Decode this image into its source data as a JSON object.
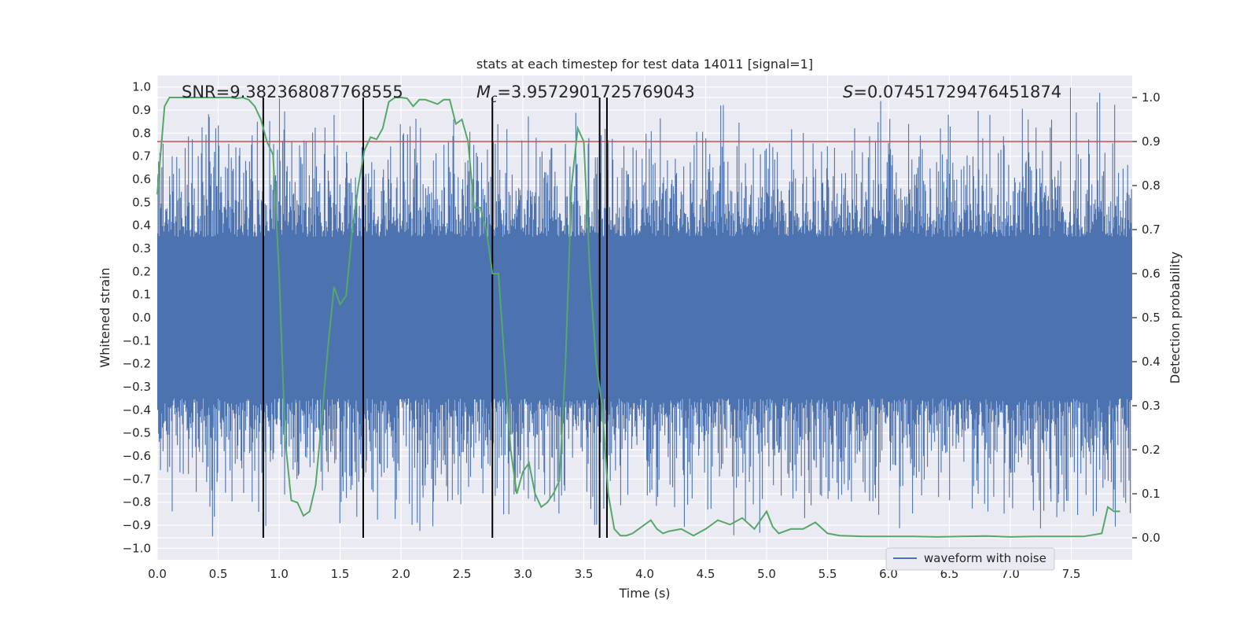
{
  "chart_data": {
    "type": "line",
    "title": "stats at each timestep for test data 14011 [signal=1]",
    "xlabel": "Time (s)",
    "ylabel_left": "Whitened strain",
    "ylabel_right": "Detection probability",
    "xlim": [
      0.0,
      8.0
    ],
    "ylim_left": [
      -1.05,
      1.05
    ],
    "ylim_right": [
      -0.05,
      1.05
    ],
    "xticks": [
      "0.0",
      "0.5",
      "1.0",
      "1.5",
      "2.0",
      "2.5",
      "3.0",
      "3.5",
      "4.0",
      "4.5",
      "5.0",
      "5.5",
      "6.0",
      "6.5",
      "7.0",
      "7.5"
    ],
    "yticks_left": [
      "-1.0",
      "-0.9",
      "-0.8",
      "-0.7",
      "-0.6",
      "-0.5",
      "-0.4",
      "-0.3",
      "-0.2",
      "-0.1",
      "0.0",
      "0.1",
      "0.2",
      "0.3",
      "0.4",
      "0.5",
      "0.6",
      "0.7",
      "0.8",
      "0.9",
      "1.0"
    ],
    "yticks_right": [
      "0.0",
      "0.1",
      "0.2",
      "0.3",
      "0.4",
      "0.5",
      "0.6",
      "0.7",
      "0.8",
      "0.9",
      "1.0"
    ],
    "annotations": {
      "snr": "SNR=9.382368087768555",
      "mc_symbol": "M",
      "mc_sub": "c",
      "mc_value": "=3.9572901725769043",
      "s_symbol": "S",
      "s_value": "=0.07451729476451874"
    },
    "legend": {
      "label": "waveform with noise",
      "position": "bottom-right"
    },
    "threshold_right": 0.9,
    "vertical_lines_x": [
      0.87,
      1.69,
      2.75,
      3.63,
      3.69
    ],
    "vertical_lines_right_range": [
      0.0,
      1.0
    ],
    "waveform": {
      "name": "waveform with noise",
      "duration": 8.0,
      "core_amplitude": 0.35,
      "peak_mean": 0.5
    },
    "detection_probability": {
      "x": [
        0.0,
        0.06,
        0.1,
        0.2,
        0.3,
        0.4,
        0.5,
        0.6,
        0.65,
        0.7,
        0.75,
        0.8,
        0.85,
        0.9,
        0.95,
        1.0,
        1.05,
        1.1,
        1.15,
        1.2,
        1.25,
        1.3,
        1.35,
        1.4,
        1.45,
        1.5,
        1.55,
        1.6,
        1.65,
        1.7,
        1.75,
        1.8,
        1.85,
        1.9,
        1.95,
        2.0,
        2.05,
        2.1,
        2.15,
        2.2,
        2.25,
        2.3,
        2.35,
        2.4,
        2.45,
        2.5,
        2.55,
        2.6,
        2.65,
        2.7,
        2.75,
        2.8,
        2.85,
        2.9,
        2.95,
        3.0,
        3.05,
        3.1,
        3.15,
        3.2,
        3.25,
        3.3,
        3.35,
        3.4,
        3.45,
        3.5,
        3.55,
        3.6,
        3.65,
        3.7,
        3.75,
        3.8,
        3.85,
        3.9,
        3.95,
        4.0,
        4.05,
        4.1,
        4.15,
        4.2,
        4.3,
        4.4,
        4.5,
        4.6,
        4.7,
        4.8,
        4.9,
        5.0,
        5.05,
        5.1,
        5.2,
        5.3,
        5.4,
        5.5,
        5.6,
        5.8,
        6.0,
        6.2,
        6.4,
        6.6,
        6.8,
        6.9,
        7.0,
        7.2,
        7.4,
        7.6,
        7.75,
        7.8,
        7.85,
        7.9
      ],
      "y": [
        0.78,
        0.98,
        1.0,
        1.0,
        1.0,
        1.0,
        1.0,
        1.0,
        0.998,
        1.0,
        0.995,
        0.98,
        0.95,
        0.9,
        0.87,
        0.6,
        0.22,
        0.085,
        0.08,
        0.05,
        0.06,
        0.12,
        0.27,
        0.43,
        0.57,
        0.53,
        0.55,
        0.7,
        0.8,
        0.88,
        0.91,
        0.905,
        0.93,
        0.99,
        1.0,
        1.0,
        0.998,
        0.98,
        0.995,
        0.995,
        0.99,
        0.985,
        0.995,
        0.995,
        0.94,
        0.95,
        0.9,
        0.75,
        0.75,
        0.7,
        0.6,
        0.6,
        0.4,
        0.2,
        0.1,
        0.15,
        0.17,
        0.1,
        0.07,
        0.08,
        0.1,
        0.13,
        0.4,
        0.8,
        0.93,
        0.9,
        0.6,
        0.4,
        0.3,
        0.1,
        0.02,
        0.005,
        0.005,
        0.01,
        0.02,
        0.03,
        0.04,
        0.02,
        0.01,
        0.015,
        0.02,
        0.005,
        0.02,
        0.04,
        0.03,
        0.045,
        0.02,
        0.06,
        0.025,
        0.01,
        0.02,
        0.02,
        0.035,
        0.01,
        0.005,
        0.003,
        0.003,
        0.003,
        0.002,
        0.003,
        0.004,
        0.003,
        0.002,
        0.003,
        0.003,
        0.003,
        0.01,
        0.07,
        0.06,
        0.06
      ]
    },
    "colors": {
      "background": "#eaeaf2",
      "waveform": "#4c72b0",
      "probability": "#55a868",
      "threshold": "#c44e52",
      "vlines": "#000000",
      "grid": "#ffffff"
    }
  }
}
